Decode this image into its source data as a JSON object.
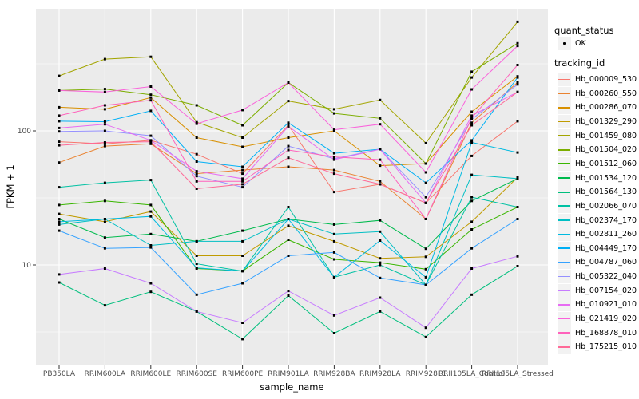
{
  "figure": {
    "kind": "ggplot-line-chart"
  },
  "legend": {
    "quant_status_title": "quant_status",
    "quant_status_items": [
      {
        "label": "OK",
        "symbol": "point",
        "color": "#000000"
      }
    ],
    "tracking_id_title": "tracking_id"
  },
  "chart_data": {
    "type": "line",
    "title": "",
    "x_label": "sample_name",
    "y_label": "FPKM + 1",
    "y_scale": "log10",
    "y_breaks": [
      100,
      10
    ],
    "y_minor_breaks": [
      316.2,
      31.62,
      3.162
    ],
    "ylim": [
      1.8,
      815
    ],
    "grid": "on",
    "legend_position": "right",
    "panel_bg": "#EBEBEB",
    "grid_color": "#FFFFFF",
    "tick_color": "#333333",
    "axis_text_color": "#4D4D4D",
    "point_color": "#000000",
    "quant_status": "OK",
    "categories": [
      "PB350LA",
      "RRIM600LA",
      "RRIM600LE",
      "RRIM600SE",
      "RRIM600PE",
      "RRIM901LA",
      "RRIM928BA",
      "RRIM928LA",
      "RRIM928LE",
      "RRII105LA_Control",
      "RRII105LA_Stressed"
    ],
    "series": [
      {
        "name": "Hb_000009_530",
        "color": "#F8766D",
        "values": [
          83,
          80,
          85,
          67,
          48,
          110,
          35,
          40,
          29,
          65,
          118
        ]
      },
      {
        "name": "Hb_000260_550",
        "color": "#EA8331",
        "values": [
          58,
          77,
          80,
          48,
          51,
          54,
          51,
          42,
          22,
          115,
          230
        ]
      },
      {
        "name": "Hb_000286_070",
        "color": "#D89000",
        "values": [
          150,
          145,
          177,
          89,
          76,
          89,
          100,
          55,
          57,
          139,
          255
        ]
      },
      {
        "name": "Hb_001329_290",
        "color": "#C09B00",
        "values": [
          24,
          21,
          25,
          11.7,
          11.7,
          19.6,
          15,
          11.2,
          11.5,
          21,
          45
        ]
      },
      {
        "name": "Hb_001459_080",
        "color": "#A3A500",
        "values": [
          257,
          343,
          357,
          116,
          89,
          167,
          145,
          170,
          81,
          250,
          650
        ]
      },
      {
        "name": "Hb_001504_020",
        "color": "#7CAE00",
        "values": [
          200,
          205,
          186,
          155,
          110,
          229,
          135,
          124,
          57,
          276,
          450
        ]
      },
      {
        "name": "Hb_001512_060",
        "color": "#39B600",
        "values": [
          28,
          30,
          28,
          9.4,
          9,
          15.4,
          11,
          10.4,
          9.3,
          18.4,
          27
        ]
      },
      {
        "name": "Hb_001534_120",
        "color": "#00BB4E",
        "values": [
          22,
          16,
          17,
          15,
          18,
          22,
          20,
          21.5,
          13.2,
          30,
          44
        ]
      },
      {
        "name": "Hb_001564_130",
        "color": "#00BF7D",
        "values": [
          7.4,
          5.0,
          6.3,
          4.5,
          2.8,
          5.9,
          3.1,
          4.5,
          2.9,
          6.0,
          9.8
        ]
      },
      {
        "name": "Hb_002066_070",
        "color": "#00C1A3",
        "values": [
          38,
          41,
          43,
          10.2,
          9,
          27,
          8.1,
          10,
          7.1,
          32,
          27
        ]
      },
      {
        "name": "Hb_002374_170",
        "color": "#00BFC4",
        "values": [
          20,
          22,
          14,
          15,
          15,
          22,
          17,
          17.7,
          7.1,
          47,
          44
        ]
      },
      {
        "name": "Hb_002811_260",
        "color": "#00BAE0",
        "values": [
          21,
          22,
          23,
          9.5,
          9,
          22,
          8.1,
          15.2,
          8.1,
          82,
          69
        ]
      },
      {
        "name": "Hb_004449_170",
        "color": "#00B0F6",
        "values": [
          118,
          117,
          141,
          59,
          54,
          115,
          68,
          73,
          41,
          85,
          250
        ]
      },
      {
        "name": "Hb_004787_060",
        "color": "#35A2FF",
        "values": [
          18,
          13.3,
          13.5,
          6.0,
          7.3,
          11.7,
          12.4,
          8,
          7.1,
          13.3,
          22
        ]
      },
      {
        "name": "Hb_005322_040",
        "color": "#9590FF",
        "values": [
          99,
          100,
          92,
          46,
          38,
          77,
          62,
          73,
          32,
          122,
          222
        ]
      },
      {
        "name": "Hb_007154_020",
        "color": "#C77CFF",
        "values": [
          8.5,
          9.4,
          7.3,
          4.5,
          3.7,
          6.4,
          4.2,
          5.7,
          3.4,
          9.4,
          11.6
        ]
      },
      {
        "name": "Hb_010921_010",
        "color": "#E76BF3",
        "values": [
          105,
          112,
          85,
          50,
          44,
          108,
          61,
          73,
          29,
          130,
          195
        ]
      },
      {
        "name": "Hb_021419_020",
        "color": "#FA62DB",
        "values": [
          200,
          195,
          214,
          113,
          143,
          229,
          102,
          112,
          49,
          204,
          430
        ]
      },
      {
        "name": "Hb_168878_010",
        "color": "#FF62BC",
        "values": [
          130,
          155,
          169,
          42,
          42,
          72,
          64,
          61,
          22,
          125,
          310
        ]
      },
      {
        "name": "Hb_175215_010",
        "color": "#FF6A98",
        "values": [
          78,
          82,
          83,
          37,
          40,
          63,
          48,
          40,
          29,
          110,
          195
        ]
      }
    ]
  }
}
